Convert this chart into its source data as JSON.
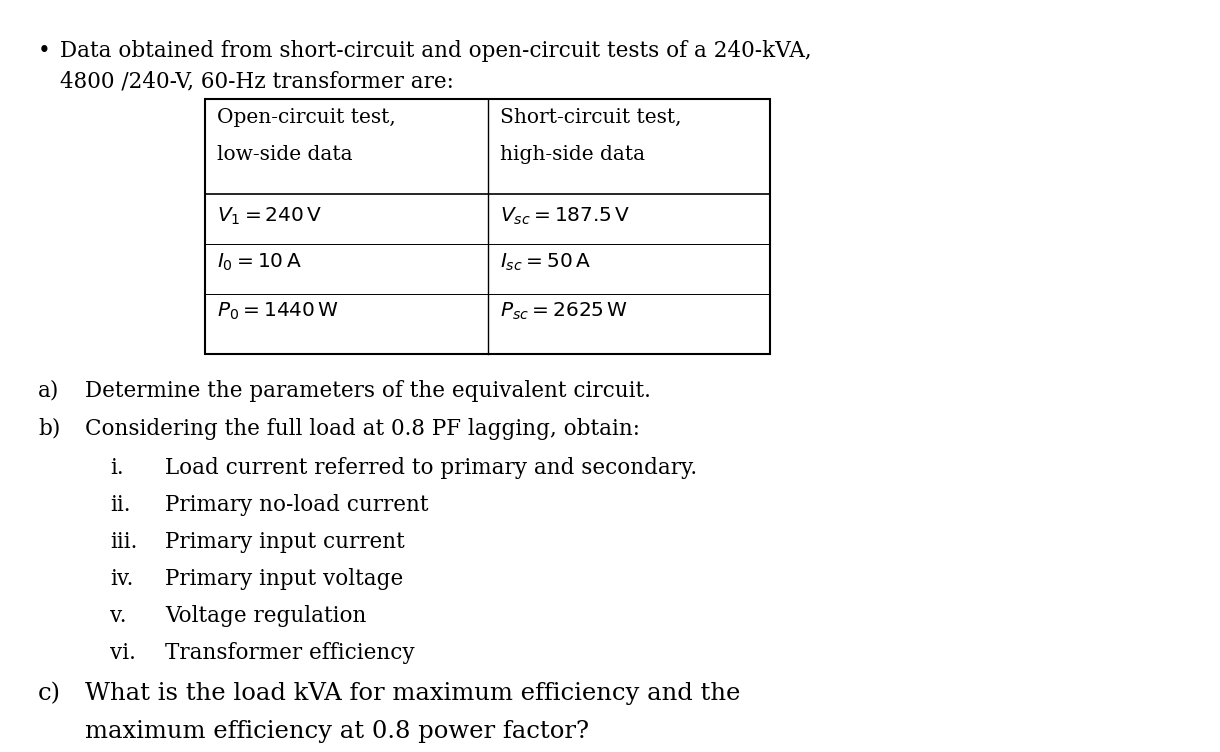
{
  "bg_color": "#ffffff",
  "bullet_char": "•",
  "bullet_line1": "Data obtained from short-circuit and open-circuit tests of a 240-kVA,",
  "bullet_line2": "4800 /240-V, 60-Hz transformer are:",
  "col1_h1": "Open-circuit test,",
  "col1_h2": "low-side data",
  "col2_h1": "Short-circuit test,",
  "col2_h2": "high-side data",
  "col1_r1": "$V_1 = 240\\,\\mathrm{V}$",
  "col1_r2": "$I_0 = 10\\,\\mathrm{A}$",
  "col1_r3": "$P_0 = 1440\\,\\mathrm{W}$",
  "col2_r1": "$V_{sc} = 187.5\\,\\mathrm{V}$",
  "col2_r2": "$I_{sc} = 50\\,\\mathrm{A}$",
  "col2_r3": "$P_{sc} = 2625\\,\\mathrm{W}$",
  "item_a_label": "a)",
  "item_a_text": "Determine the parameters of the equivalent circuit.",
  "item_b_label": "b)",
  "item_b_text": "Considering the full load at 0.8 PF lagging, obtain:",
  "sub_i_label": "i.",
  "sub_i_text": "Load current referred to primary and secondary.",
  "sub_ii_label": "ii.",
  "sub_ii_text": "Primary no-load current",
  "sub_iii_label": "iii.",
  "sub_iii_text": "Primary input current",
  "sub_iv_label": "iv.",
  "sub_iv_text": "Primary input voltage",
  "sub_v_label": "v.",
  "sub_v_text": "Voltage regulation",
  "sub_vi_label": "vi.",
  "sub_vi_text": "Transformer efficiency",
  "item_c_label": "c)",
  "item_c_line1": "What is the load kVA for maximum efficiency and the",
  "item_c_line2": "maximum efficiency at 0.8 power factor?",
  "fs_main": 15.5,
  "fs_table": 14.5,
  "fs_c": 17.5,
  "font": "DejaVu Serif"
}
